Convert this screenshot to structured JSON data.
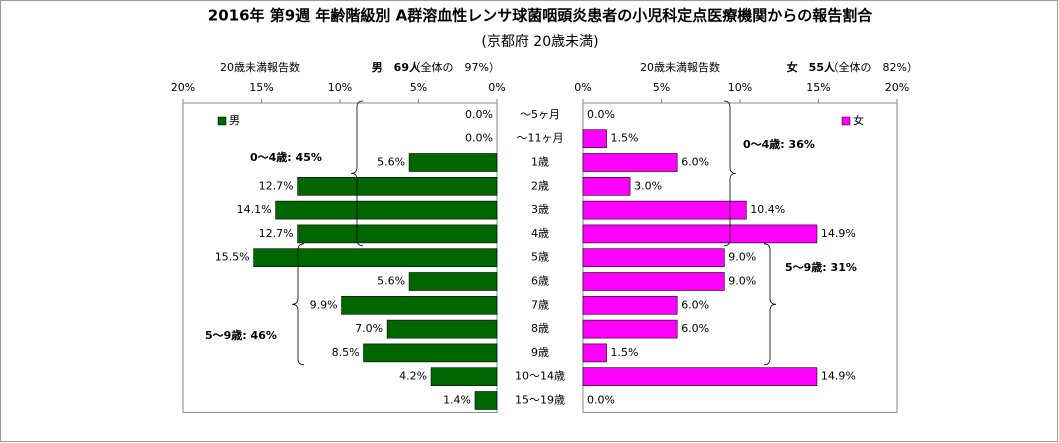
{
  "chart_data": {
    "type": "bar",
    "title": "2016年 第9週 年齢階級別 A群溶血性レンサ球菌咽頭炎患者の小児科定点医療機関からの報告割合",
    "subtitle": "(京都府 20歳未満)",
    "categories": [
      "～5ヶ月",
      "～11ヶ月",
      "1歳",
      "2歳",
      "3歳",
      "4歳",
      "5歳",
      "6歳",
      "7歳",
      "8歳",
      "9歳",
      "10～14歳",
      "15～19歳"
    ],
    "xlim": [
      0,
      20
    ],
    "xticks": [
      {
        "value": 0,
        "label": "0%"
      },
      {
        "value": 5,
        "label": "5%"
      },
      {
        "value": 10,
        "label": "10%"
      },
      {
        "value": 15,
        "label": "15%"
      },
      {
        "value": 20,
        "label": "20%"
      }
    ],
    "series": [
      {
        "name": "男",
        "color": "#006600",
        "count_label": "20歳未満報告数",
        "total": "男　69人",
        "share": "（全体の　97%）",
        "values": [
          0.0,
          0.0,
          5.6,
          12.7,
          14.1,
          12.7,
          15.5,
          5.6,
          9.9,
          7.0,
          8.5,
          4.2,
          1.4
        ],
        "value_labels": [
          "0.0%",
          "0.0%",
          "5.6%",
          "12.7%",
          "14.1%",
          "12.7%",
          "15.5%",
          "5.6%",
          "9.9%",
          "7.0%",
          "8.5%",
          "4.2%",
          "1.4%"
        ],
        "annotations": [
          "0～4歳: 45%",
          "5～9歳: 46%"
        ]
      },
      {
        "name": "女",
        "color": "#ff00ff",
        "count_label": "20歳未満報告数",
        "total": "女　55人",
        "share": "（全体の　82%）",
        "values": [
          0.0,
          1.5,
          6.0,
          3.0,
          10.4,
          14.9,
          9.0,
          9.0,
          6.0,
          6.0,
          1.5,
          14.9,
          0.0
        ],
        "value_labels": [
          "0.0%",
          "1.5%",
          "6.0%",
          "3.0%",
          "10.4%",
          "14.9%",
          "9.0%",
          "9.0%",
          "6.0%",
          "6.0%",
          "1.5%",
          "14.9%",
          "0.0%"
        ],
        "annotations": [
          "0～4歳: 36%",
          "5～9歳: 31%"
        ]
      }
    ]
  }
}
